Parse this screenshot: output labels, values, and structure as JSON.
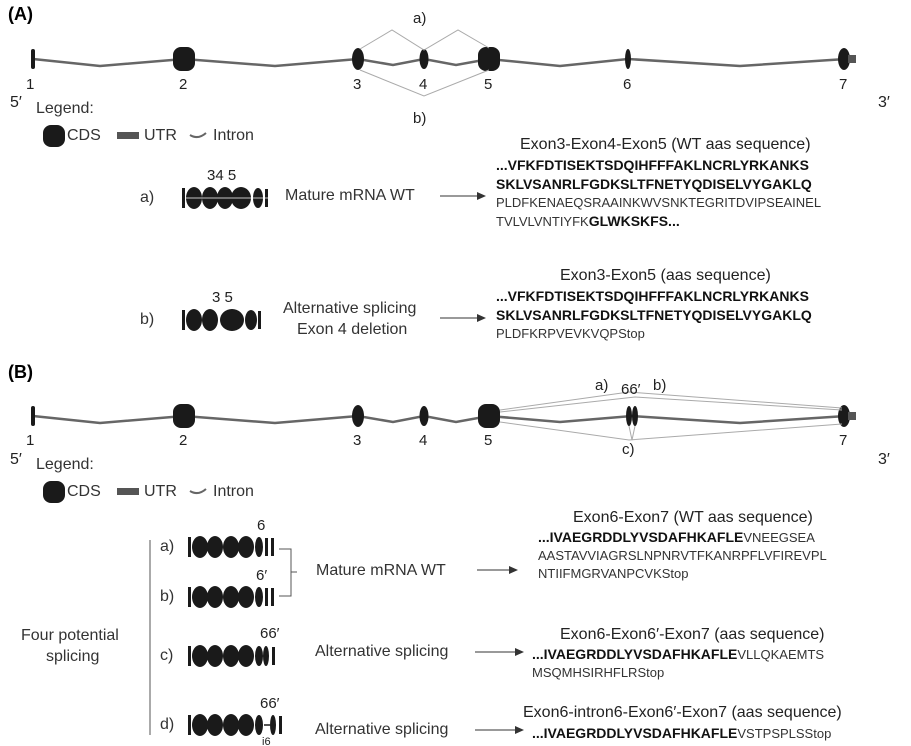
{
  "colors": {
    "line": "#666666",
    "exon": "#1a1a1a",
    "splice": "#aaaaaa",
    "text": "#333333"
  },
  "panelA": {
    "label": "(A)",
    "exon_numbers": [
      "1",
      "2",
      "3",
      "4",
      "5",
      "6",
      "7"
    ],
    "five_prime": "5′",
    "three_prime": "3′",
    "splice_a": "a)",
    "splice_b": "b)",
    "legend": {
      "title": "Legend:",
      "cds": "CDS",
      "utr": "UTR",
      "intron": "Intron"
    },
    "transcript_a": {
      "letter": "a)",
      "label": "34 5",
      "arrow_text": "Mature mRNA WT",
      "seq_title": "Exon3-Exon4-Exon5 (WT aas sequence)",
      "seq_bold_1": "...VFKFDTISEKTSDQIHFFFAKLNCRLYRKANKS",
      "seq_bold_2": "SKLVSANRLFGDKSLTFNETYQDISELVYGAKLQ",
      "seq_3": "PLDFKENAEQSRAAINKWVSNKTEGRITDVIPSEAINEL",
      "seq_4_plain": "TVLVLVNTIYFK",
      "seq_4_bold": "GLWKSKFS..."
    },
    "transcript_b": {
      "letter": "b)",
      "label": "3 5",
      "arrow_text_1": "Alternative splicing",
      "arrow_text_2": "Exon 4 deletion",
      "seq_title": "Exon3-Exon5 (aas sequence)",
      "seq_bold_1": "...VFKFDTISEKTSDQIHFFFAKLNCRLYRKANKS",
      "seq_bold_2": "SKLVSANRLFGDKSLTFNETYQDISELVYGAKLQ",
      "seq_3": "PLDFKRPVEVKVQPStop"
    }
  },
  "panelB": {
    "label": "(B)",
    "exon_numbers": [
      "1",
      "2",
      "3",
      "4",
      "5",
      "7"
    ],
    "exon6_label": "66′",
    "five_prime": "5′",
    "three_prime": "3′",
    "splice_a": "a)",
    "splice_b": "b)",
    "splice_c": "c)",
    "legend": {
      "title": "Legend:",
      "cds": "CDS",
      "utr": "UTR",
      "intron": "Intron"
    },
    "four_potential_1": "Four potential",
    "four_potential_2": "splicing",
    "mature_text": "Mature mRNA WT",
    "transcript_a": {
      "letter": "a)",
      "label": "6"
    },
    "transcript_b": {
      "letter": "b)",
      "label": "6′"
    },
    "transcript_c": {
      "letter": "c)",
      "label": "66′",
      "arrow_text": "Alternative splicing",
      "seq_title": "Exon6-Exon6′-Exon7 (aas sequence)",
      "seq_bold": "...IVAEGRDDLYVSDAFHKAFLE",
      "seq_plain": "VLLQKAEMTS",
      "seq_2": "MSQMHSIRHFLRStop"
    },
    "transcript_d": {
      "letter": "d)",
      "label": "66′",
      "sub_label": "i6",
      "arrow_text": "Alternative splicing",
      "seq_title": "Exon6-intron6-Exon6′-Exon7 (aas sequence)",
      "seq_bold": "...IVAEGRDDLYVSDAFHKAFLE",
      "seq_plain": "VSTPSPLSStop"
    },
    "wt_seq": {
      "seq_title": "Exon6-Exon7 (WT aas sequence)",
      "seq_bold": "...IVAEGRDDLYVSDAFHKAFLE",
      "seq_plain": "VNEEGSEA",
      "seq_2": "AASTAVVIAGRSLNPNRVTFKANRPFLVFIREVPL",
      "seq_3": "NTIIFMGRVANPCVKStop"
    }
  }
}
